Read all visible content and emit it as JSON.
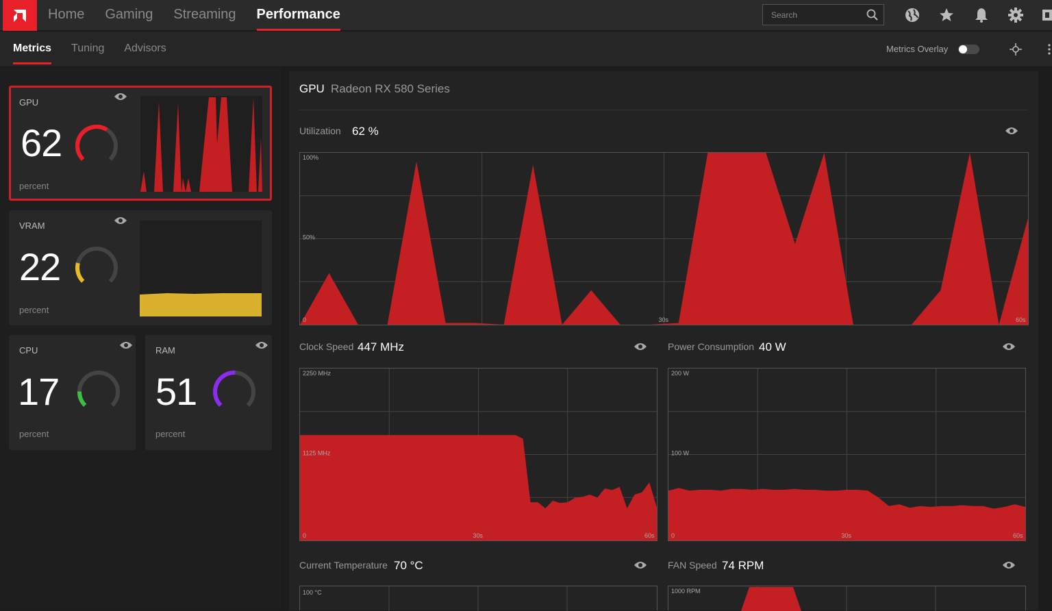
{
  "nav": {
    "tabs": [
      {
        "label": "Home"
      },
      {
        "label": "Gaming"
      },
      {
        "label": "Streaming"
      },
      {
        "label": "Performance",
        "active": true
      }
    ],
    "search_placeholder": "Search",
    "icons": [
      "globe-icon",
      "star-icon",
      "bell-icon",
      "gear-icon",
      "profile-icon"
    ]
  },
  "subnav": {
    "tabs": [
      {
        "label": "Metrics",
        "active": true
      },
      {
        "label": "Tuning"
      },
      {
        "label": "Advisors"
      }
    ],
    "overlay_label": "Metrics Overlay",
    "overlay_on": false
  },
  "cards": {
    "gpu": {
      "name": "GPU",
      "value": "62",
      "unit": "percent",
      "level": 0.62,
      "color": "#e8202a"
    },
    "vram": {
      "name": "VRAM",
      "value": "22",
      "unit": "percent",
      "level": 0.22,
      "color": "#e8b92a"
    },
    "cpu": {
      "name": "CPU",
      "value": "17",
      "unit": "percent",
      "level": 0.17,
      "color": "#3fbf3f"
    },
    "ram": {
      "name": "RAM",
      "value": "51",
      "unit": "percent",
      "level": 0.51,
      "color": "#8b2cf0"
    }
  },
  "detail": {
    "title": "GPU",
    "device": "Radeon RX 580 Series",
    "utilization": {
      "label": "Utilization",
      "value": "62 %",
      "axis_top": "100%",
      "axis_mid": "50%",
      "axis_zero": "0",
      "axis_30": "30s",
      "axis_60": "60s",
      "samples": [
        0,
        30,
        0,
        0,
        95,
        1,
        1,
        0,
        93,
        0,
        20,
        0,
        0,
        1,
        100,
        100,
        100,
        47,
        100,
        0,
        0,
        0,
        20,
        100,
        0,
        62
      ]
    },
    "clock": {
      "label": "Clock Speed",
      "value": "447 MHz",
      "axis_top": "2250 MHz",
      "axis_mid": "1125 MHz",
      "axis_zero": "0",
      "axis_30": "30s",
      "axis_60": "60s",
      "samples": [
        1380,
        1380,
        1380,
        1380,
        1380,
        1380,
        1380,
        1380,
        1380,
        1380,
        1380,
        1380,
        1380,
        1380,
        1380,
        1380,
        1380,
        1380,
        1380,
        1380,
        1380,
        1380,
        1380,
        1380,
        1380,
        1380,
        1380,
        1380,
        1380,
        1380,
        1330,
        500,
        500,
        420,
        520,
        490,
        500,
        560,
        570,
        600,
        560,
        680,
        660,
        700,
        420,
        600,
        630,
        760,
        430
      ]
    },
    "power": {
      "label": "Power Consumption",
      "value": "40 W",
      "axis_top": "200 W",
      "axis_mid": "100 W",
      "axis_zero": "0",
      "axis_30": "30s",
      "axis_60": "60s",
      "samples": [
        58,
        61,
        58,
        59,
        59,
        58,
        60,
        60,
        59,
        60,
        59,
        59,
        60,
        59,
        59,
        58,
        58,
        59,
        59,
        58,
        50,
        40,
        42,
        38,
        40,
        39,
        40,
        40,
        41,
        40,
        40,
        37,
        39,
        42,
        39
      ]
    },
    "temperature": {
      "label": "Current Temperature",
      "value": "70 °C",
      "axis_top": "100 °C"
    },
    "fan": {
      "label": "FAN Speed",
      "value": "74 RPM",
      "axis_top": "1000 RPM"
    }
  },
  "colors": {
    "accent": "#e8202a",
    "fill": "#c41f22"
  }
}
